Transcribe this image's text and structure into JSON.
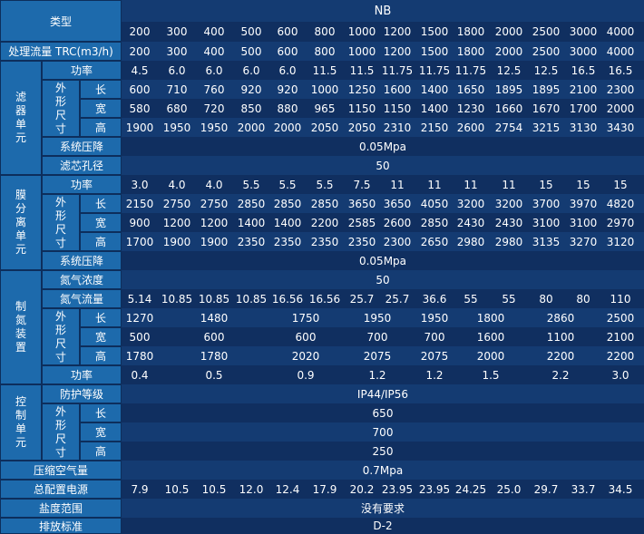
{
  "header": {
    "type_label": "类型",
    "model_series": "NB"
  },
  "models": [
    "200",
    "300",
    "400",
    "500",
    "600",
    "800",
    "1000",
    "1200",
    "1500",
    "1800",
    "2000",
    "2500",
    "3000",
    "4000"
  ],
  "flow": {
    "label": "处理流量 TRC(m3/h)",
    "values": [
      "200",
      "300",
      "400",
      "500",
      "600",
      "800",
      "1000",
      "1200",
      "1500",
      "1800",
      "2000",
      "2500",
      "3000",
      "4000"
    ]
  },
  "filter_unit": {
    "group_label": "滤器单元",
    "power": {
      "label": "功率",
      "values": [
        "4.5",
        "6.0",
        "6.0",
        "6.0",
        "6.0",
        "11.5",
        "11.5",
        "11.75",
        "11.75",
        "11.75",
        "12.5",
        "12.5",
        "16.5",
        "16.5"
      ]
    },
    "dims_label": "外形尺寸",
    "length": {
      "label": "长",
      "values": [
        "600",
        "710",
        "760",
        "920",
        "920",
        "1000",
        "1250",
        "1600",
        "1400",
        "1650",
        "1895",
        "1895",
        "2100",
        "2300"
      ]
    },
    "width": {
      "label": "宽",
      "values": [
        "580",
        "680",
        "720",
        "850",
        "880",
        "965",
        "1150",
        "1150",
        "1400",
        "1230",
        "1660",
        "1670",
        "1700",
        "2000"
      ]
    },
    "height": {
      "label": "高",
      "values": [
        "1900",
        "1950",
        "1950",
        "2000",
        "2000",
        "2050",
        "2050",
        "2310",
        "2150",
        "2600",
        "2754",
        "3215",
        "3130",
        "3430"
      ]
    },
    "pressure_drop": {
      "label": "系统压降",
      "value": "0.05Mpa"
    },
    "pore_size": {
      "label": "滤芯孔径",
      "value": "50"
    }
  },
  "membrane_unit": {
    "group_label": "膜分离单元",
    "power": {
      "label": "功率",
      "values": [
        "3.0",
        "4.0",
        "4.0",
        "5.5",
        "5.5",
        "5.5",
        "7.5",
        "11",
        "11",
        "11",
        "11",
        "15",
        "15",
        "15"
      ]
    },
    "dims_label": "外形尺寸",
    "length": {
      "label": "长",
      "values": [
        "2150",
        "2750",
        "2750",
        "2850",
        "2850",
        "2850",
        "3650",
        "3650",
        "4050",
        "3200",
        "3200",
        "3700",
        "3970",
        "4820"
      ]
    },
    "width": {
      "label": "宽",
      "values": [
        "900",
        "1200",
        "1200",
        "1400",
        "1400",
        "2200",
        "2585",
        "2600",
        "2850",
        "2430",
        "2430",
        "3100",
        "3100",
        "2970"
      ]
    },
    "height": {
      "label": "高",
      "values": [
        "1700",
        "1900",
        "1900",
        "2350",
        "2350",
        "2350",
        "2350",
        "2300",
        "2650",
        "2980",
        "2980",
        "3135",
        "3270",
        "3120"
      ]
    },
    "pressure_drop": {
      "label": "系统压降",
      "value": "0.05Mpa"
    }
  },
  "nitrogen_unit": {
    "group_label": "制氮装置",
    "concentration": {
      "label": "氮气浓度",
      "value": "50"
    },
    "n2_flow": {
      "label": "氮气流量",
      "values": [
        "5.14",
        "10.85",
        "10.85",
        "10.85",
        "16.56",
        "16.56",
        "25.7",
        "25.7",
        "36.6",
        "55",
        "55",
        "80",
        "80",
        "110"
      ]
    },
    "dims_label": "外形尺寸",
    "length": {
      "label": "长",
      "values": [
        "1270",
        "1480",
        "1750",
        "1950",
        "1950",
        "1800",
        "2860",
        "2500"
      ]
    },
    "width": {
      "label": "宽",
      "values": [
        "500",
        "600",
        "600",
        "700",
        "700",
        "1600",
        "1100",
        "2100"
      ]
    },
    "height": {
      "label": "高",
      "values": [
        "1780",
        "1780",
        "2020",
        "2075",
        "2075",
        "2000",
        "2200",
        "2200"
      ]
    },
    "power": {
      "label": "功率",
      "values": [
        "0.4",
        "0.5",
        "0.9",
        "1.2",
        "1.2",
        "1.5",
        "2.2",
        "3.0"
      ]
    }
  },
  "control_unit": {
    "group_label": "控制单元",
    "protection": {
      "label": "防护等级",
      "value": "IP44/IP56"
    },
    "dims_label": "外形尺寸",
    "length": {
      "label": "长",
      "value": "650"
    },
    "width": {
      "label": "宽",
      "value": "700"
    },
    "height": {
      "label": "高",
      "value": "250"
    }
  },
  "compressed_air": {
    "label": "压缩空气量",
    "value": "0.7Mpa"
  },
  "total_power": {
    "label": "总配置电源",
    "values": [
      "7.9",
      "10.5",
      "10.5",
      "12.0",
      "12.4",
      "17.9",
      "20.2",
      "23.95",
      "23.95",
      "24.25",
      "25.0",
      "29.7",
      "33.7",
      "34.5"
    ]
  },
  "salinity": {
    "label": "盐度范围",
    "value": "没有要求"
  },
  "discharge": {
    "label": "排放标准",
    "value": "D-2"
  }
}
